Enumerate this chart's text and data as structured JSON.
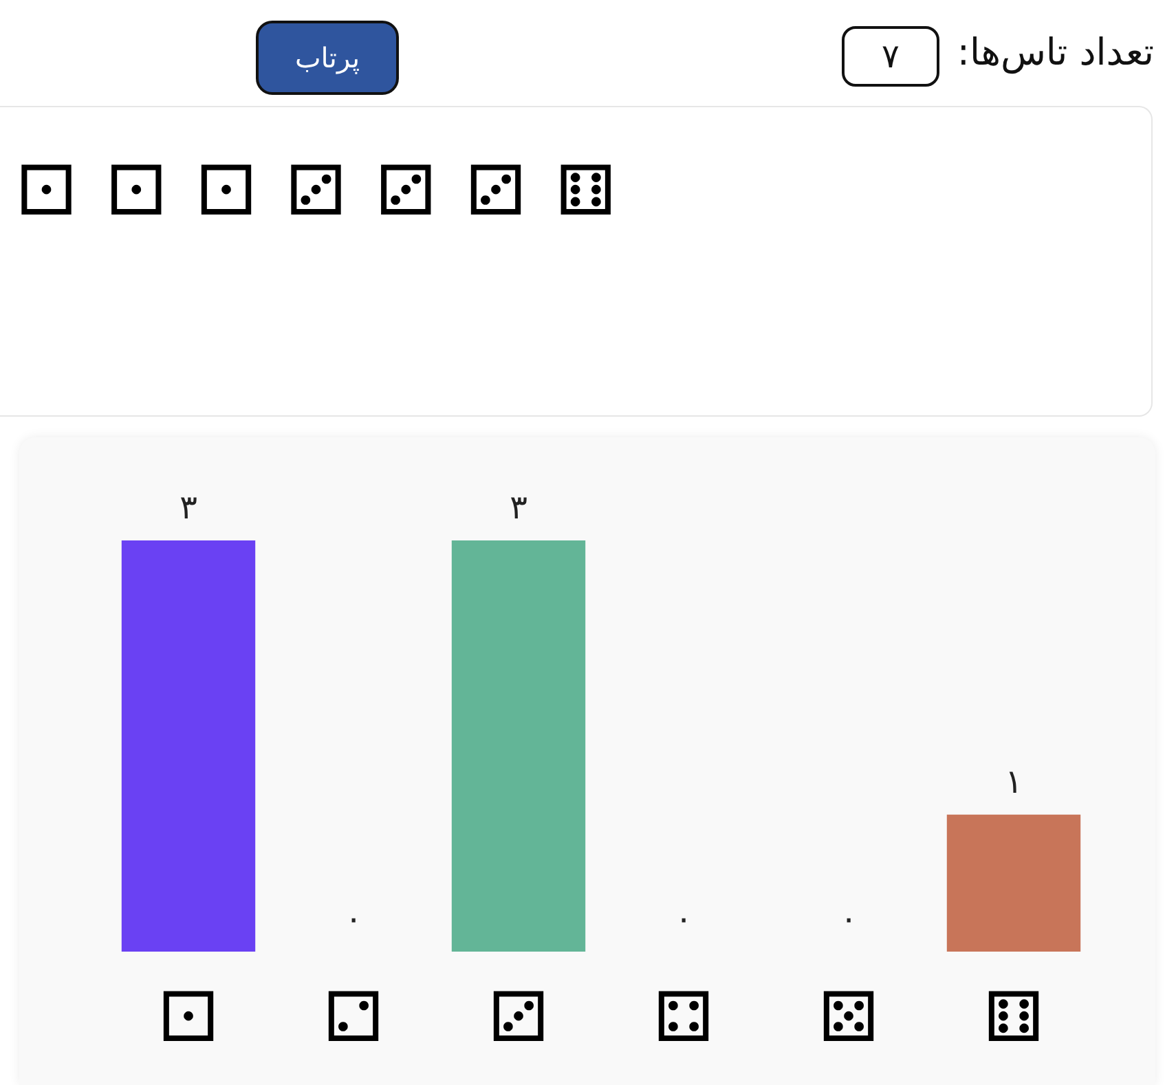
{
  "chart_data": {
    "type": "bar",
    "annotations": [
      "تعداد تاس‌ها:",
      "۷",
      "پرتاب",
      "⚀ ⚀ ⚀ ⚂ ⚂ ⚂ ⚅"
    ],
    "categories": [
      "⚀",
      "⚁",
      "⚂",
      "⚃",
      "⚄",
      "⚅"
    ],
    "values": [
      3,
      0,
      3,
      0,
      0,
      1
    ],
    "value_labels": [
      "۳",
      "۰",
      "۳",
      "۰",
      "۰",
      "۱"
    ],
    "colors": [
      "#6a41f3",
      null,
      "#63b597",
      null,
      null,
      "#c87559"
    ],
    "tick_labels": "x"
  }
}
